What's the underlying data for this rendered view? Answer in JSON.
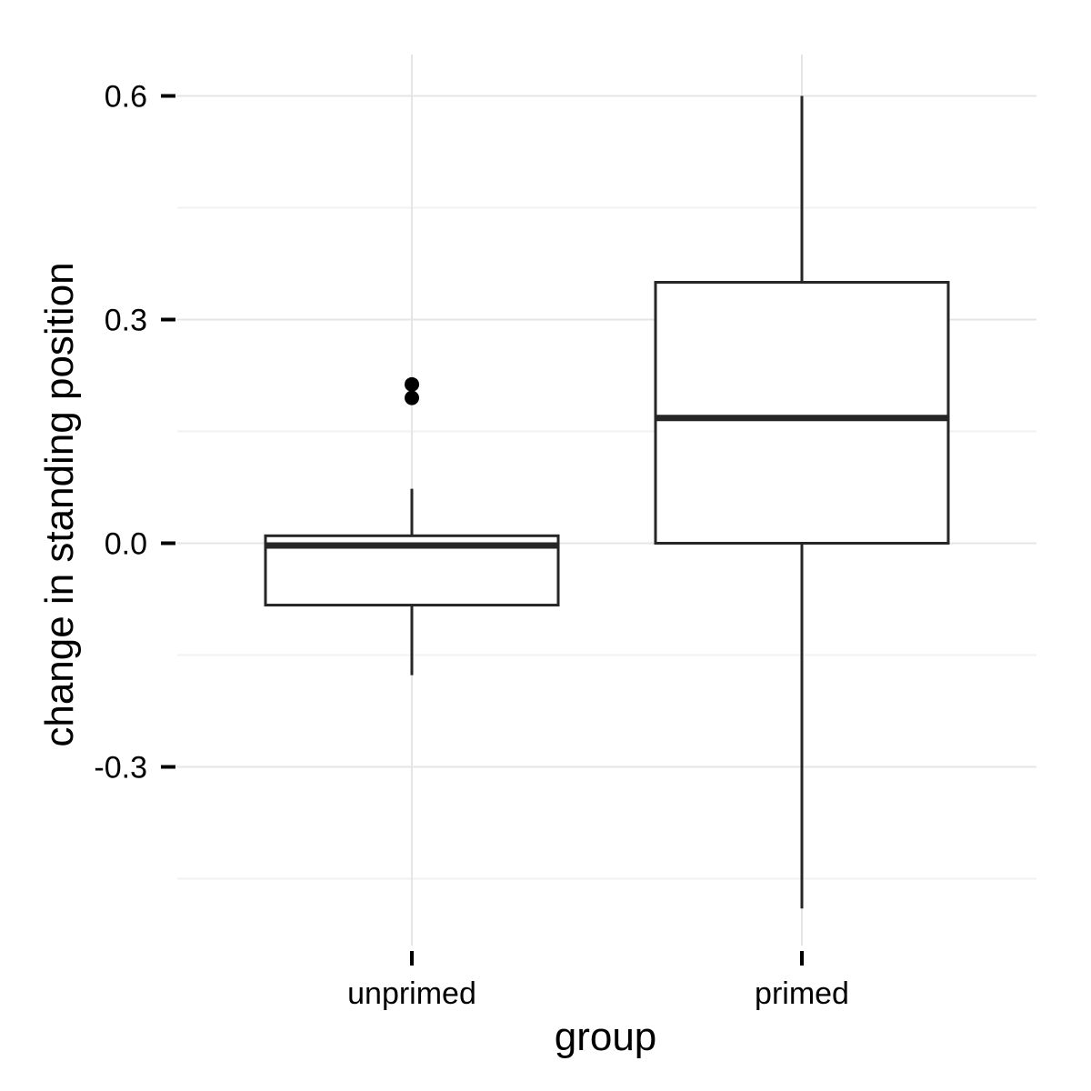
{
  "chart_data": {
    "type": "box",
    "title": "",
    "xlabel": "group",
    "ylabel": "change in standing position",
    "categories": [
      "unprimed",
      "primed"
    ],
    "boxes": [
      {
        "category": "unprimed",
        "whisker_low": -0.177,
        "q1": -0.083,
        "median": -0.003,
        "q3": 0.01,
        "whisker_high": 0.073,
        "outliers": [
          0.195,
          0.213
        ]
      },
      {
        "category": "primed",
        "whisker_low": -0.49,
        "q1": 0.0,
        "median": 0.168,
        "q3": 0.35,
        "whisker_high": 0.6,
        "outliers": []
      }
    ],
    "yticks": [
      "-0.3",
      "0.0",
      "0.3",
      "0.6"
    ],
    "ytick_values": [
      -0.3,
      0.0,
      0.3,
      0.6
    ],
    "ylim": [
      -0.54,
      0.655
    ],
    "grid": true,
    "colors": {
      "box": "#262626",
      "grid_major": "#e5e5e5",
      "grid_minor": "#f2f2f2",
      "outlier": "#000000"
    }
  }
}
